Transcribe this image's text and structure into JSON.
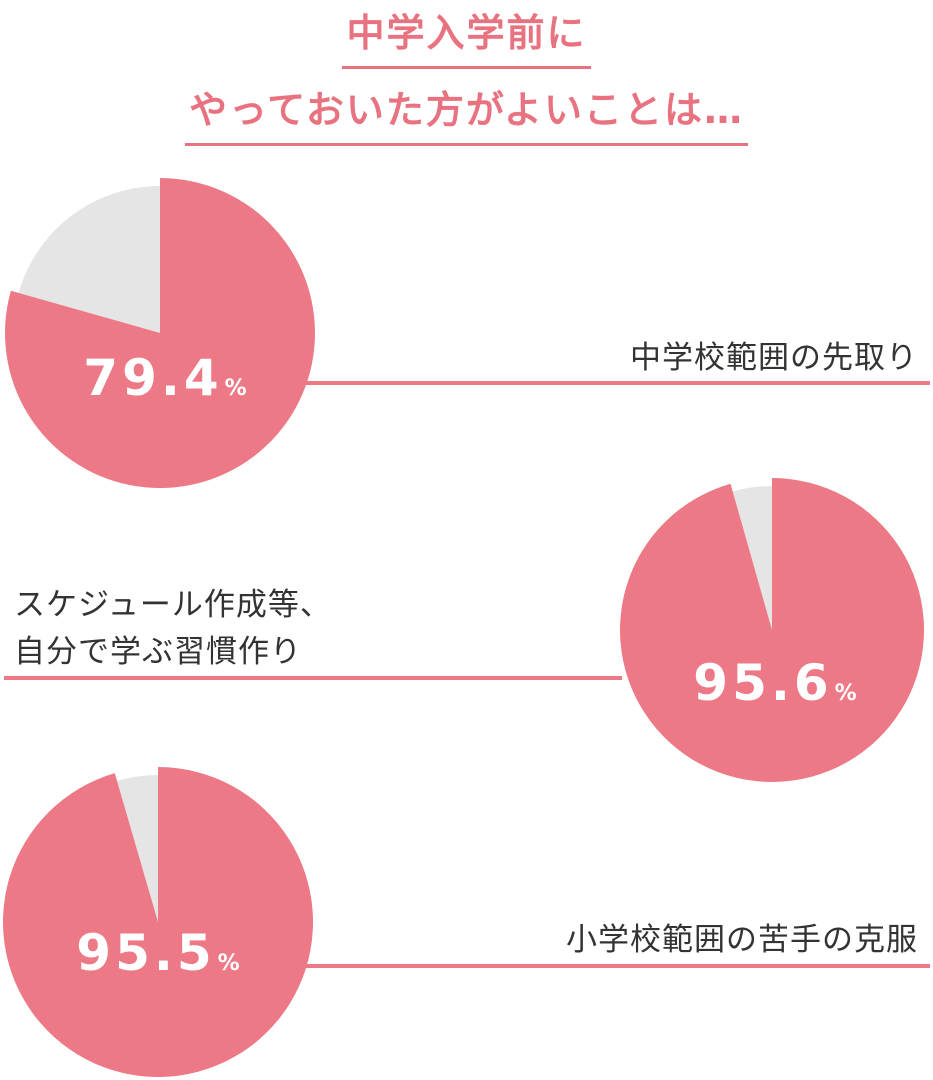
{
  "title": {
    "line1": "中学入学前に",
    "line2": "やっておいた方がよいことは…"
  },
  "colors": {
    "accent": "#ec7985",
    "remainder": "#e5e5e5",
    "title": "#e8727f",
    "label_text": "#333333",
    "value_text": "#ffffff"
  },
  "chart_data": [
    {
      "type": "pie",
      "label": "中学校範囲の先取り",
      "value": 79.4,
      "value_text": "79.4",
      "unit": "%"
    },
    {
      "type": "pie",
      "label_lines": [
        "スケジュール作成等、",
        "自分で学ぶ習慣作り"
      ],
      "value": 95.6,
      "value_text": "95.6",
      "unit": "%"
    },
    {
      "type": "pie",
      "label": "小学校範囲の苦手の克服",
      "value": 95.5,
      "value_text": "95.5",
      "unit": "%"
    }
  ]
}
